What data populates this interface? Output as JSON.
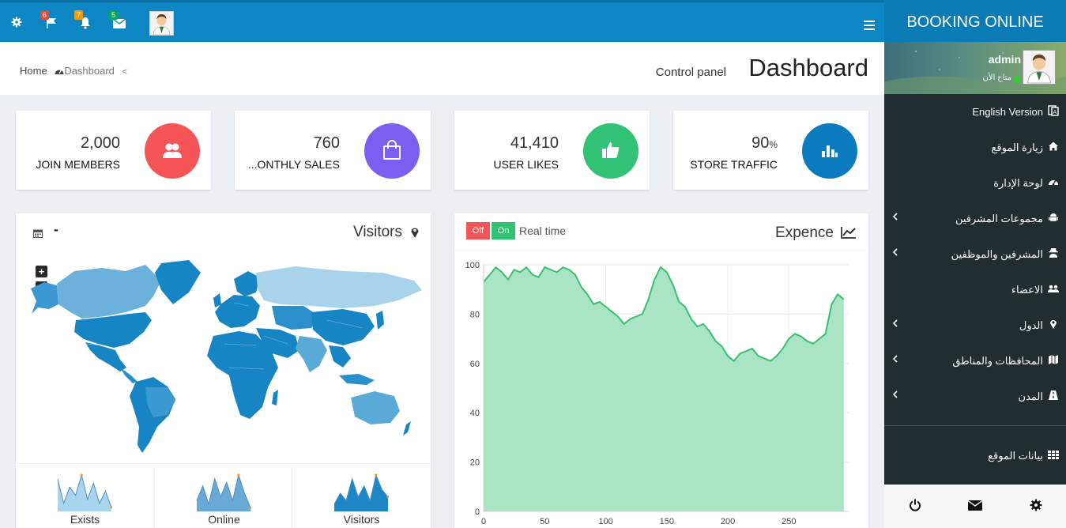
{
  "topbar": {
    "flag_count": "6",
    "bell_count": "7",
    "mail_count": "5",
    "icons": [
      "gear-icon",
      "flag-icon",
      "bell-icon",
      "envelope-icon",
      "avatar",
      "hamburger-icon"
    ]
  },
  "brand": {
    "title": "BOOKING ONLINE"
  },
  "user": {
    "name": "admin",
    "status": "متاح الأن"
  },
  "sidebar": {
    "items": [
      {
        "label": "English Version",
        "icon": "language-icon",
        "has_children": false
      },
      {
        "label": "زيارة الموقع",
        "icon": "home-icon",
        "has_children": false
      },
      {
        "label": "لوحة الإدارة",
        "icon": "dashboard-icon",
        "has_children": false
      },
      {
        "label": "مجموعات المشرفين",
        "icon": "android-icon",
        "has_children": true
      },
      {
        "label": "المشرفين والموظفين",
        "icon": "user-secret-icon",
        "has_children": true
      },
      {
        "label": "الاعضاء",
        "icon": "users-icon",
        "has_children": false
      },
      {
        "label": "الدول",
        "icon": "map-marker-icon",
        "has_children": true
      },
      {
        "label": "المحافظات والمناطق",
        "icon": "map-icon",
        "has_children": true
      },
      {
        "label": "المدن",
        "icon": "road-icon",
        "has_children": true
      },
      {
        "label": "بيانات الموقع",
        "icon": "grid-icon",
        "has_children": false
      }
    ],
    "footer_icons": [
      "power-icon",
      "envelope-icon",
      "gear-icon"
    ]
  },
  "breadcrumb": {
    "home": "Home",
    "current": "Dashboard",
    "sep": "<"
  },
  "page": {
    "title": "Dashboard",
    "subtitle": "Control panel"
  },
  "stats": [
    {
      "value": "2,000",
      "label": "JOIN MEMBERS",
      "color": "#f55556",
      "icon": "users-icon"
    },
    {
      "value": "760",
      "label": "...ONTHLY SALES",
      "color": "#7a5ff0",
      "icon": "shopping-bag-icon"
    },
    {
      "value": "41,410",
      "label": "USER LIKES",
      "color": "#31c276",
      "icon": "thumbs-up-icon"
    },
    {
      "value": "90",
      "value_suffix": "%",
      "label": "STORE TRAFFIC",
      "color": "#0b7bc0",
      "icon": "bar-chart-icon"
    }
  ],
  "visitors": {
    "title": "Visitors",
    "zoom_in": "+",
    "zoom_out": "−",
    "minimize": "-",
    "sparklines": [
      {
        "label": "Exists",
        "values": [
          8,
          2,
          6,
          4,
          9,
          3,
          7,
          2,
          5,
          1
        ]
      },
      {
        "label": "Online",
        "values": [
          3,
          7,
          2,
          9,
          4,
          8,
          3,
          10,
          5,
          1
        ]
      },
      {
        "label": "Visitors",
        "values": [
          2,
          5,
          3,
          9,
          4,
          7,
          3,
          10,
          6,
          4
        ]
      }
    ]
  },
  "expence": {
    "title": "Expence",
    "toggle_off": "Off",
    "toggle_on": "On",
    "realtime": "Real time",
    "colors": {
      "line": "#3bbf6f",
      "fill": "#a9e5c5",
      "off": "#f55556",
      "on": "#31c276"
    }
  },
  "chart_data": {
    "type": "area",
    "title": "Expence",
    "xlabel": "",
    "ylabel": "",
    "xlim": [
      0,
      299
    ],
    "ylim": [
      0,
      100
    ],
    "x_ticks": [
      0,
      50,
      100,
      150,
      200,
      250
    ],
    "y_ticks": [
      0,
      20,
      40,
      60,
      80,
      100
    ],
    "grid": true,
    "sample_step": 5,
    "values": [
      93,
      96,
      99,
      97,
      94,
      98,
      97,
      99,
      96,
      95,
      99,
      98,
      97,
      99,
      98,
      96,
      91,
      88,
      84,
      85,
      83,
      81,
      79,
      76,
      78,
      79,
      80,
      86,
      94,
      99,
      97,
      92,
      85,
      83,
      78,
      75,
      76,
      73,
      69,
      67,
      63,
      61,
      64,
      65,
      66,
      63,
      62,
      61,
      63,
      66,
      70,
      72,
      71,
      69,
      68,
      70,
      72,
      84,
      88,
      86
    ],
    "series": [
      {
        "name": "",
        "color": "#3bbf6f"
      }
    ]
  }
}
